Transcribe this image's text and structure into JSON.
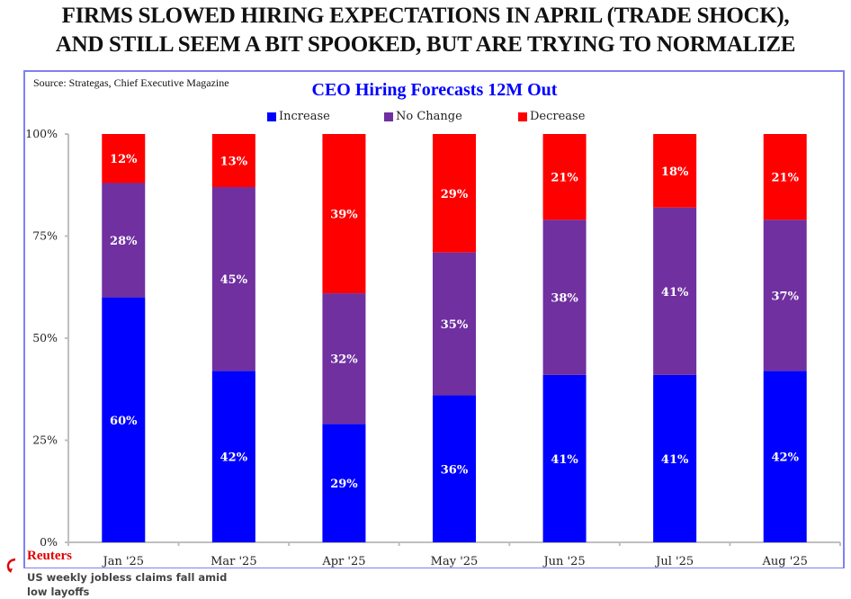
{
  "headline": {
    "line1": "FIRMS SLOWED HIRING EXPECTATIONS IN APRIL (TRADE SHOCK),",
    "line2": "AND STILL SEEM A BIT SPOOKED, BUT ARE TRYING TO NORMALIZE"
  },
  "source": "Source: Strategas, Chief Executive Magazine",
  "overlay": {
    "publisher": "Reuters",
    "headline": "US weekly jobless claims fall amid low layoffs"
  },
  "colors": {
    "increase": "#0000ff",
    "no_change": "#7030a0",
    "decrease": "#ff0000",
    "title": "#0000ff",
    "frame": "#8080f0",
    "axis": "#bfbfbf"
  },
  "chart_data": {
    "type": "bar",
    "stacked": true,
    "title": "CEO Hiring Forecasts 12M Out",
    "xlabel": "",
    "ylabel": "",
    "ylim": [
      0,
      100
    ],
    "yticks": [
      "0%",
      "25%",
      "50%",
      "75%",
      "100%"
    ],
    "ytick_values": [
      0,
      25,
      50,
      75,
      100
    ],
    "grid": false,
    "legend_position": "top-center",
    "categories": [
      "Jan '25",
      "Mar '25",
      "Apr '25",
      "May '25",
      "Jun '25",
      "Jul '25",
      "Aug '25"
    ],
    "series": [
      {
        "name": "Increase",
        "color": "#0000ff",
        "values": [
          60,
          42,
          29,
          36,
          41,
          41,
          42
        ]
      },
      {
        "name": "No Change",
        "color": "#7030a0",
        "values": [
          28,
          45,
          32,
          35,
          38,
          41,
          37
        ]
      },
      {
        "name": "Decrease",
        "color": "#ff0000",
        "values": [
          12,
          13,
          39,
          29,
          21,
          18,
          21
        ]
      }
    ],
    "value_label_suffix": "%"
  }
}
